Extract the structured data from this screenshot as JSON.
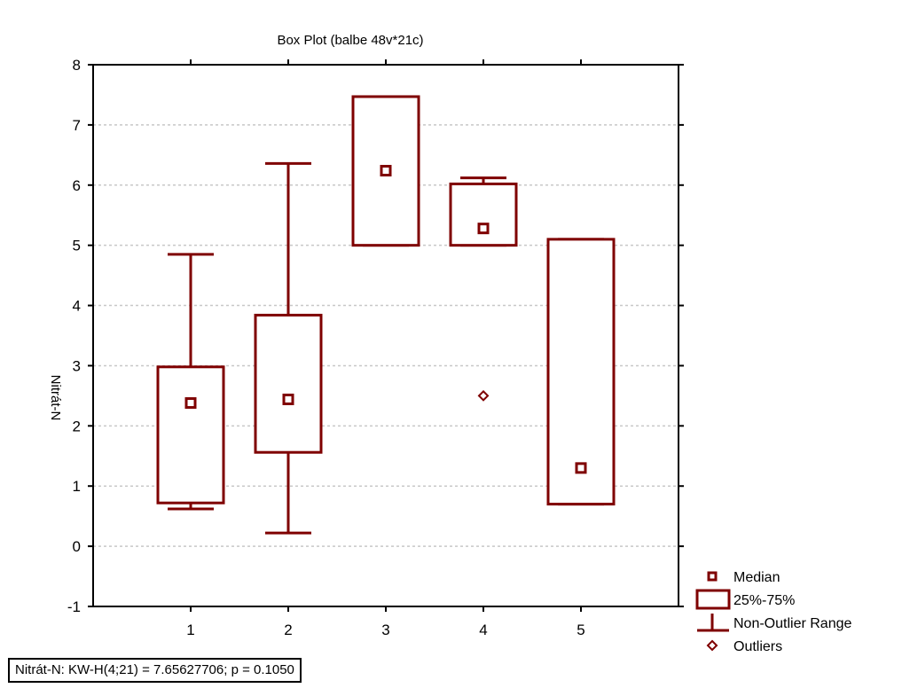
{
  "chart_data": {
    "type": "box",
    "title": "Box Plot (balbe 48v*21c)",
    "ylabel": "Nitrát-N",
    "xlabel": "",
    "categories": [
      "1",
      "2",
      "3",
      "4",
      "5"
    ],
    "ylim": [
      -1,
      8
    ],
    "xlim": [
      0,
      6
    ],
    "yticks": [
      -1,
      0,
      1,
      2,
      3,
      4,
      5,
      6,
      7,
      8
    ],
    "grid": true,
    "boxes": [
      {
        "category": "1",
        "median": 2.38,
        "q1": 0.72,
        "q3": 2.98,
        "whisker_low": 0.62,
        "whisker_high": 4.85,
        "outliers": []
      },
      {
        "category": "2",
        "median": 2.44,
        "q1": 1.56,
        "q3": 3.84,
        "whisker_low": 0.22,
        "whisker_high": 6.36,
        "outliers": []
      },
      {
        "category": "3",
        "median": 6.24,
        "q1": 5.0,
        "q3": 7.47,
        "whisker_low": 5.0,
        "whisker_high": 7.47,
        "outliers": []
      },
      {
        "category": "4",
        "median": 5.28,
        "q1": 5.0,
        "q3": 6.02,
        "whisker_low": 5.0,
        "whisker_high": 6.12,
        "outliers": [
          2.5
        ]
      },
      {
        "category": "5",
        "median": 1.3,
        "q1": 0.7,
        "q3": 5.1,
        "whisker_low": 0.7,
        "whisker_high": 5.1,
        "outliers": []
      }
    ],
    "legend": {
      "position": "bottom-right",
      "items": [
        {
          "symbol": "median",
          "label": "Median"
        },
        {
          "symbol": "box",
          "label": "25%-75%"
        },
        {
          "symbol": "whisker",
          "label": "Non-Outlier Range"
        },
        {
          "symbol": "outlier",
          "label": "Outliers"
        }
      ]
    },
    "stats_text": "Nitrát-N:  KW-H(4;21) = 7.65627706; p = 0.1050",
    "colors": {
      "series": "#7f0000",
      "axis": "#000000",
      "grid": "#c8c8c8"
    }
  }
}
